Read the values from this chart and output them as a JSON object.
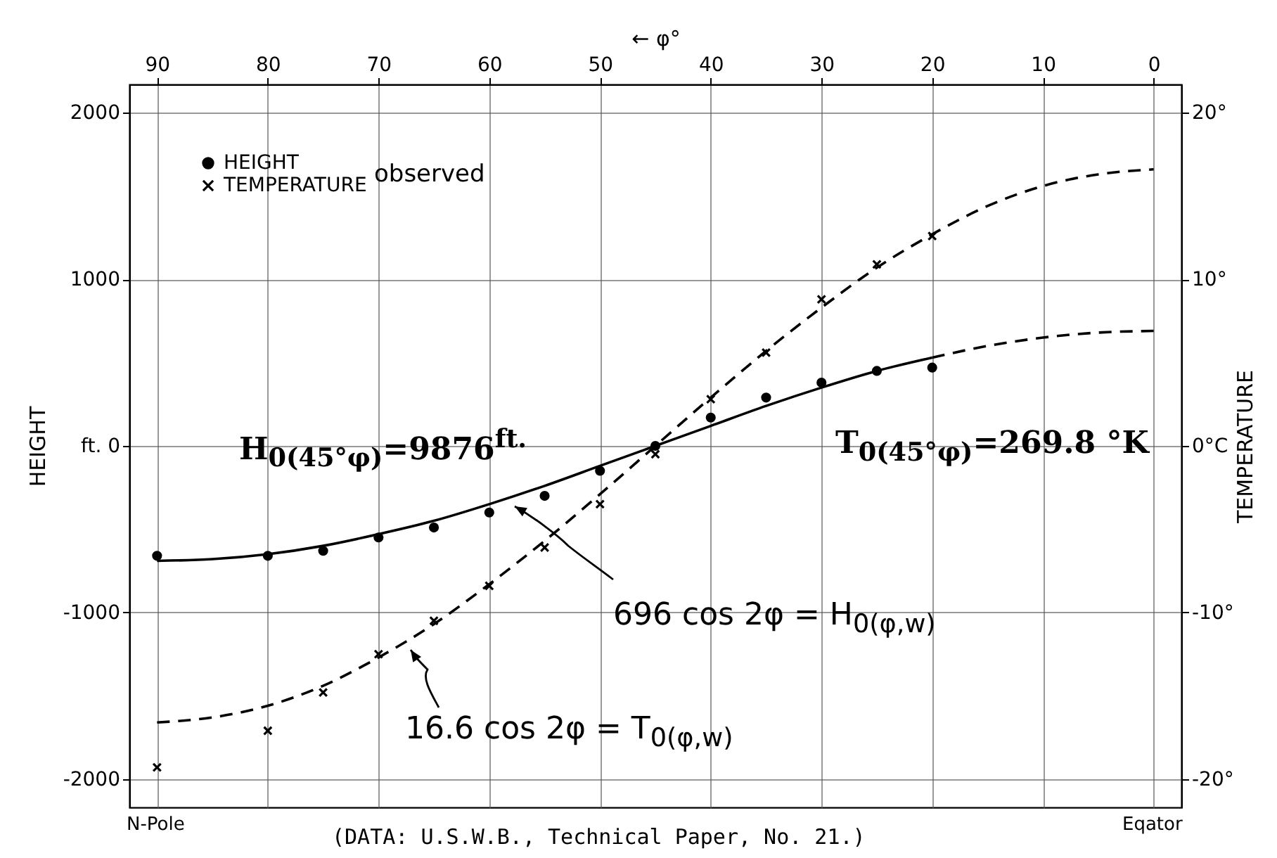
{
  "chart_data": {
    "type": "line",
    "xlim": [
      92.5,
      -2.5
    ],
    "xticks": [
      90,
      80,
      70,
      60,
      50,
      40,
      30,
      20,
      10,
      0
    ],
    "xlabel": "← φ°",
    "ylim": [
      -2170,
      2170
    ],
    "yticks": [
      -2000,
      -1000,
      {
        "value": 0,
        "label": "ft. 0"
      },
      1000,
      2000
    ],
    "ylabel": "HEIGHT",
    "y2lim": [
      -21.7,
      21.7
    ],
    "y2ticks": [
      {
        "value": -20,
        "label": "-20°"
      },
      {
        "value": -10,
        "label": "-10°"
      },
      {
        "value": 0,
        "label": "0°C"
      },
      {
        "value": 10,
        "label": "10°"
      },
      {
        "value": 20,
        "label": "20°"
      }
    ],
    "y2label": "TEMPERATURE",
    "grid": true,
    "legend": "top left",
    "legend_title": "observed",
    "series": [
      {
        "name": "HEIGHT",
        "type": "scatter",
        "marker": "circle",
        "color": "#000000",
        "x": [
          90,
          80,
          75,
          70,
          65,
          60,
          55,
          50,
          45,
          40,
          35,
          30,
          25,
          20
        ],
        "values": [
          -660,
          -660,
          -630,
          -550,
          -490,
          -400,
          -300,
          -150,
          0,
          170,
          290,
          380,
          450,
          470
        ]
      },
      {
        "name": "TEMPERATURE",
        "type": "scatter",
        "marker": "cross",
        "axis": "y2",
        "color": "#000000",
        "x": [
          90,
          80,
          75,
          70,
          65,
          60,
          55,
          50,
          45,
          40,
          35,
          30,
          25,
          20
        ],
        "values": [
          -19.3,
          -17.1,
          -14.8,
          -12.5,
          -10.5,
          -8.4,
          -6.1,
          -3.5,
          -0.5,
          2.8,
          5.6,
          8.8,
          10.9,
          12.6
        ]
      },
      {
        "line_style": "solid",
        "color": "#000000",
        "x": [
          90,
          85,
          80,
          75,
          70,
          65,
          60,
          55,
          50,
          45,
          40,
          35,
          30,
          25,
          20
        ],
        "values": [
          -690,
          -680,
          -650,
          -600,
          -530,
          -450,
          -350,
          -240,
          -120,
          0,
          120,
          240,
          350,
          450,
          530
        ]
      },
      {
        "line_style": "dashed",
        "color": "#000000",
        "x": [
          20,
          15,
          10,
          5,
          0
        ],
        "values": [
          530,
          600,
          650,
          680,
          690
        ]
      },
      {
        "line_style": "dashed",
        "axis": "y2",
        "color": "#000000",
        "x": [
          90,
          85,
          80,
          75,
          70,
          65,
          60,
          55,
          50,
          45,
          40,
          35,
          30,
          25,
          20,
          15,
          10,
          5,
          0
        ],
        "values": [
          -16.6,
          -16.3,
          -15.6,
          -14.4,
          -12.7,
          -10.7,
          -8.3,
          -5.7,
          -2.9,
          0,
          2.9,
          5.7,
          8.3,
          10.7,
          12.7,
          14.4,
          15.6,
          16.3,
          16.6
        ]
      }
    ],
    "annotations": [
      "H$_{0(45°φ)}$=9876$^{ft.}$",
      "T$_{0(45°φ)}$=269.8 °K",
      "696 cos 2φ = H$_{0(φ,w)}$",
      "16.6 cos 2φ = T$_{0(φ,w)}$",
      "(DATA: U.S.W.B., Technical Paper, No. 21.)",
      "N-Pole",
      "Eqator"
    ]
  }
}
